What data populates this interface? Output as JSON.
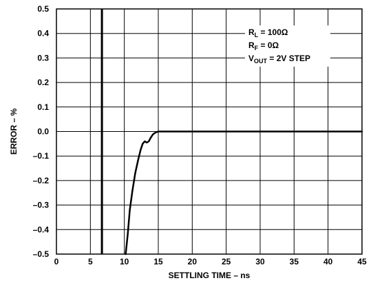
{
  "chart_data": {
    "type": "line",
    "title": "",
    "xlabel": "SETTLING TIME – ns",
    "ylabel": "ERROR – %",
    "xlim": [
      0,
      45
    ],
    "ylim": [
      -0.5,
      0.5
    ],
    "grid": true,
    "x_ticks": [
      0,
      5,
      10,
      15,
      20,
      25,
      30,
      35,
      40,
      45
    ],
    "x_tick_labels": [
      "0",
      "5",
      "10",
      "15",
      "20",
      "25",
      "30",
      "35",
      "40",
      "45"
    ],
    "y_ticks": [
      0.5,
      0.4,
      0.3,
      0.2,
      0.1,
      0.0,
      -0.1,
      -0.2,
      -0.3,
      -0.4,
      -0.5
    ],
    "y_tick_labels": [
      "0.5",
      "0.4",
      "0.3",
      "0.2",
      "0.1",
      "0.0",
      "–0.1",
      "–0.2",
      "–0.3",
      "–0.4",
      "–0.5"
    ],
    "marker_line_x": 6.7,
    "series": [
      {
        "x": [
          10.2,
          10.5,
          10.8,
          11.2,
          11.6,
          12.0,
          12.4,
          12.7,
          13.0,
          13.3,
          13.6,
          13.9,
          14.2,
          14.6,
          15.0,
          16.0,
          20,
          25,
          30,
          35,
          40,
          45
        ],
        "y": [
          -0.5,
          -0.42,
          -0.32,
          -0.24,
          -0.17,
          -0.12,
          -0.075,
          -0.05,
          -0.04,
          -0.045,
          -0.04,
          -0.025,
          -0.012,
          -0.004,
          0.0,
          0.0,
          0.0,
          0.0,
          0.0,
          0.0,
          0.0,
          0.0
        ]
      }
    ],
    "annotations": {
      "line1_main": "R",
      "line1_sub": "L",
      "line1_rest": " = 100Ω",
      "line2_main": "R",
      "line2_sub": "F",
      "line2_rest": " = 0Ω",
      "line3_main": "V",
      "line3_sub": "OUT",
      "line3_rest": " = 2V STEP"
    }
  }
}
